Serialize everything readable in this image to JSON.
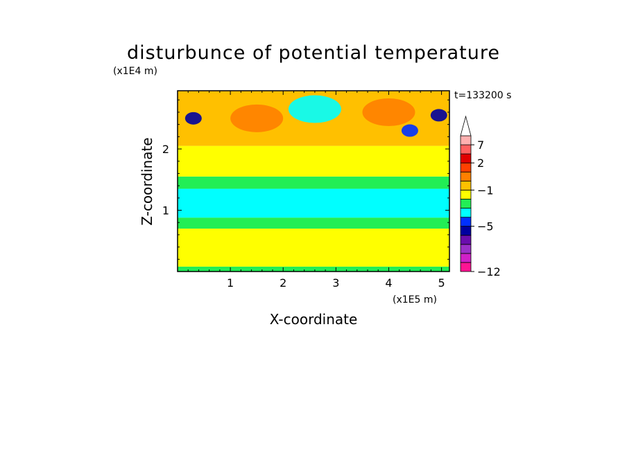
{
  "chart_data": {
    "type": "heatmap",
    "title": "disturbunce of potential temperature",
    "xlabel": "X-coordinate",
    "ylabel": "Z-coordinate",
    "x_unit": "(x1E5 m)",
    "y_unit": "(x1E4 m)",
    "time_label": "t=133200 s",
    "xlim": [
      0,
      5.15
    ],
    "ylim": [
      0,
      2.95
    ],
    "x_ticks": [
      "1",
      "2",
      "3",
      "4",
      "5"
    ],
    "y_ticks": [
      "1",
      "2"
    ],
    "x_tick_values": [
      1,
      2,
      3,
      4,
      5
    ],
    "y_tick_values": [
      1,
      2
    ],
    "colorbar": {
      "levels": [
        "-12",
        "-5",
        "-1",
        "2",
        "7"
      ],
      "colors": [
        "#ff1493",
        "#d020c8",
        "#9b30c8",
        "#6a0dad",
        "#0000a0",
        "#0030ff",
        "#00ffff",
        "#22ee55",
        "#ffff00",
        "#ffc000",
        "#ff8000",
        "#ff4000",
        "#e00000",
        "#ff6060",
        "#ffb0b0"
      ],
      "extend_top": true
    },
    "bands": [
      {
        "z": [
          0.0,
          0.08
        ],
        "class": "-1..0",
        "color": "#22ee55"
      },
      {
        "z": [
          0.08,
          0.7
        ],
        "class": "0..1",
        "color": "#ffff00"
      },
      {
        "z": [
          0.7,
          0.88
        ],
        "class": "-1..0",
        "color": "#22ee55"
      },
      {
        "z": [
          0.88,
          1.35
        ],
        "class": "-2..-1",
        "color": "#00ffff"
      },
      {
        "z": [
          1.35,
          1.55
        ],
        "class": "-1..0",
        "color": "#22ee55"
      },
      {
        "z": [
          1.55,
          2.05
        ],
        "class": "0..1",
        "color": "#ffff00"
      },
      {
        "z": [
          2.05,
          2.95
        ],
        "class": "1..3",
        "color": "#ffc000"
      }
    ],
    "features": [
      {
        "x": 1.5,
        "z": 2.5,
        "class": "3..5",
        "color": "#ff8000"
      },
      {
        "x": 4.0,
        "z": 2.6,
        "class": "3..5",
        "color": "#ff8000"
      },
      {
        "x": 2.6,
        "z": 2.65,
        "class": "-2..-1",
        "color": "#00ffff"
      },
      {
        "x": 0.3,
        "z": 2.5,
        "class": "-5..-3",
        "color": "#0000a0"
      },
      {
        "x": 4.95,
        "z": 2.55,
        "class": "-5..-3",
        "color": "#0000a0"
      },
      {
        "x": 4.4,
        "z": 2.3,
        "class": "-3..-2",
        "color": "#0030ff"
      }
    ]
  }
}
